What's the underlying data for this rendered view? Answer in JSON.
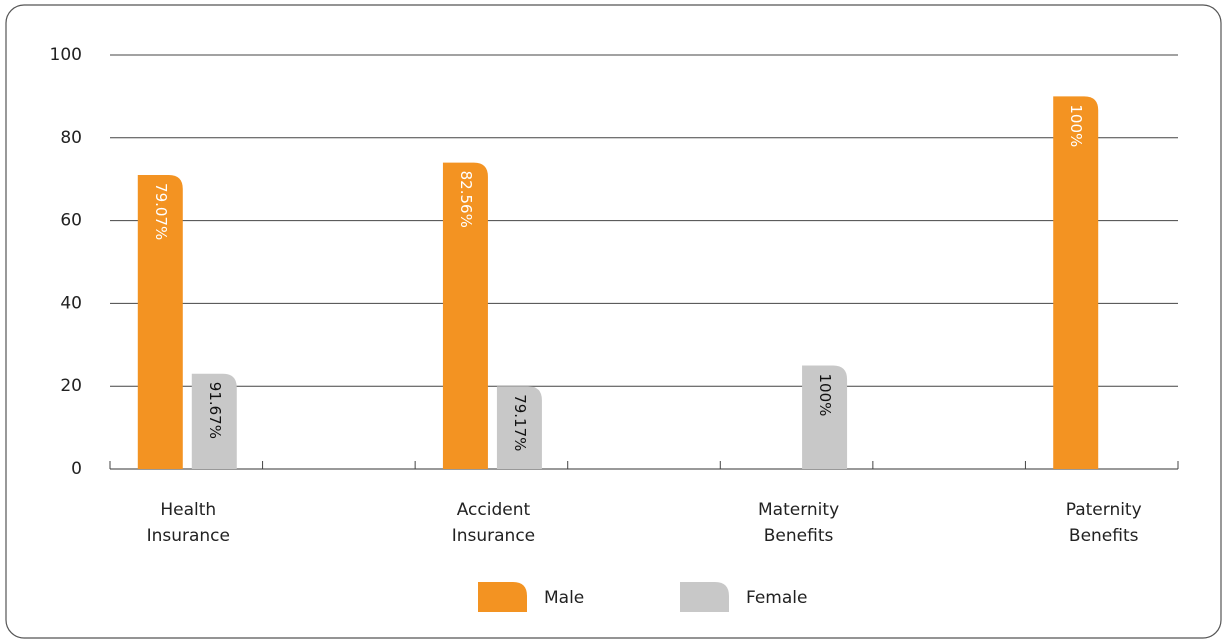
{
  "chart_data": {
    "type": "bar",
    "categories": [
      "Health Insurance",
      null,
      "Accident Insurance",
      null,
      "Maternity Benefits",
      null,
      "Paternity Benefits"
    ],
    "series": [
      {
        "name": "Male",
        "color": "#f39322",
        "values": [
          71,
          null,
          74,
          null,
          null,
          null,
          90
        ],
        "value_labels": [
          "79.07%",
          null,
          "82.56%",
          null,
          null,
          null,
          "100%"
        ]
      },
      {
        "name": "Female",
        "color": "#c8c8c8",
        "values": [
          23,
          null,
          20,
          null,
          25,
          null,
          null
        ],
        "value_labels": [
          "91.67%",
          null,
          "79.17%",
          null,
          "100%",
          null,
          null
        ]
      }
    ],
    "ylim": [
      0,
      100
    ],
    "yticks": [
      0,
      20,
      40,
      60,
      80,
      100
    ],
    "grid": true
  }
}
